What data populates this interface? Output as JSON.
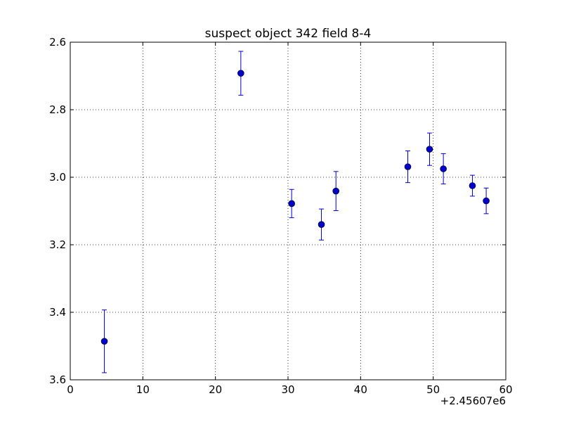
{
  "chart_data": {
    "type": "scatter",
    "title": "suspect object 342 field 8-4",
    "xlabel": "",
    "ylabel": "",
    "xlim": [
      0,
      60
    ],
    "ylim": [
      2.6,
      3.6
    ],
    "y_inverted": true,
    "x_offset_label": "+2.45607e6",
    "x_ticks": [
      0,
      10,
      20,
      30,
      40,
      50,
      60
    ],
    "x_tick_labels": [
      "0",
      "10",
      "20",
      "30",
      "40",
      "50",
      "60"
    ],
    "y_ticks": [
      2.6,
      2.8,
      3.0,
      3.2,
      3.4,
      3.6
    ],
    "y_tick_labels": [
      "2.6",
      "2.8",
      "3.0",
      "3.2",
      "3.4",
      "3.6"
    ],
    "grid": true,
    "marker_color": "#0000cc",
    "series": [
      {
        "points": [
          {
            "x": 4.7,
            "y": 3.486,
            "err": 0.093
          },
          {
            "x": 23.5,
            "y": 2.692,
            "err": 0.065
          },
          {
            "x": 30.5,
            "y": 3.078,
            "err": 0.042
          },
          {
            "x": 34.6,
            "y": 3.14,
            "err": 0.046
          },
          {
            "x": 36.6,
            "y": 3.041,
            "err": 0.058
          },
          {
            "x": 46.5,
            "y": 2.969,
            "err": 0.047
          },
          {
            "x": 49.5,
            "y": 2.917,
            "err": 0.048
          },
          {
            "x": 51.4,
            "y": 2.975,
            "err": 0.045
          },
          {
            "x": 55.4,
            "y": 3.025,
            "err": 0.031
          },
          {
            "x": 57.3,
            "y": 3.07,
            "err": 0.038
          }
        ]
      }
    ]
  }
}
